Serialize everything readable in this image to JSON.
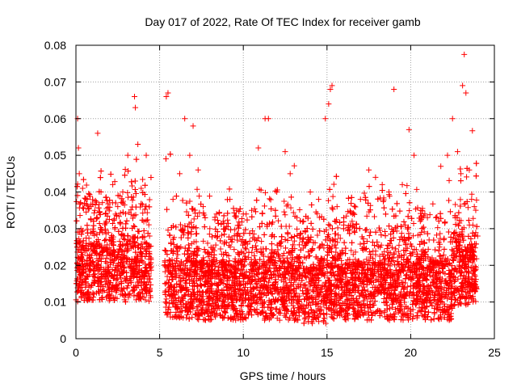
{
  "chart_data": {
    "type": "scatter",
    "title": "Day 017 of 2022, Rate Of TEC Index for receiver gamb",
    "xlabel": "GPS time / hours",
    "ylabel": "ROTI / TECUs",
    "xlim": [
      0,
      25
    ],
    "ylim": [
      0,
      0.08
    ],
    "x_ticks": [
      "0",
      "5",
      "10",
      "15",
      "20",
      "25"
    ],
    "y_ticks": [
      "0",
      "0.01",
      "0.02",
      "0.03",
      "0.04",
      "0.05",
      "0.06",
      "0.07",
      "0.08"
    ],
    "x_tick_values": [
      0,
      5,
      10,
      15,
      20,
      25
    ],
    "y_tick_values": [
      0,
      0.01,
      0.02,
      0.03,
      0.04,
      0.05,
      0.06,
      0.07,
      0.08
    ],
    "grid": true,
    "legend": "none",
    "marker": "plus",
    "colors": {
      "points": "#ff0000",
      "grid": "#a0a0a0",
      "axes": "#000000"
    },
    "data_gap_hours": [
      4.5,
      5.3
    ],
    "series": [
      {
        "x": [
          0.05,
          0.1,
          0.15,
          0.2,
          0.3,
          0.4,
          0.6,
          0.9,
          1.3,
          1.5,
          1.8,
          2.2,
          2.5,
          2.8,
          3.1,
          3.5,
          3.55,
          3.7,
          3.9,
          4.2,
          4.4,
          5.3,
          5.4,
          5.5,
          5.8,
          6.2,
          6.5,
          6.8,
          7.0,
          7.3,
          7.6,
          8.0,
          8.4,
          8.8,
          9.2,
          9.6,
          10.0,
          10.5,
          10.9,
          11.3,
          11.5,
          12.0,
          12.5,
          12.8,
          13.2,
          13.6,
          14.0,
          14.5,
          14.9,
          15.1,
          15.2,
          15.3,
          15.6,
          16.0,
          16.5,
          17.0,
          17.5,
          17.9,
          18.3,
          18.7,
          19.0,
          19.5,
          19.9,
          20.2,
          20.6,
          21.0,
          21.5,
          21.8,
          22.2,
          22.5,
          22.8,
          23.0,
          23.1,
          23.2,
          23.3,
          23.5,
          23.8,
          24.0
        ],
        "y": [
          0.015,
          0.06,
          0.052,
          0.045,
          0.03,
          0.041,
          0.038,
          0.036,
          0.056,
          0.04,
          0.032,
          0.042,
          0.036,
          0.04,
          0.05,
          0.066,
          0.063,
          0.053,
          0.041,
          0.05,
          0.028,
          0.02,
          0.066,
          0.067,
          0.038,
          0.045,
          0.06,
          0.05,
          0.058,
          0.046,
          0.036,
          0.03,
          0.034,
          0.032,
          0.038,
          0.035,
          0.034,
          0.035,
          0.052,
          0.06,
          0.06,
          0.04,
          0.051,
          0.045,
          0.033,
          0.032,
          0.04,
          0.038,
          0.06,
          0.064,
          0.068,
          0.069,
          0.036,
          0.031,
          0.032,
          0.038,
          0.046,
          0.044,
          0.042,
          0.04,
          0.068,
          0.042,
          0.057,
          0.05,
          0.035,
          0.033,
          0.033,
          0.047,
          0.05,
          0.06,
          0.051,
          0.045,
          0.069,
          0.0775,
          0.067,
          0.046,
          0.036,
          0.028
        ]
      }
    ]
  }
}
